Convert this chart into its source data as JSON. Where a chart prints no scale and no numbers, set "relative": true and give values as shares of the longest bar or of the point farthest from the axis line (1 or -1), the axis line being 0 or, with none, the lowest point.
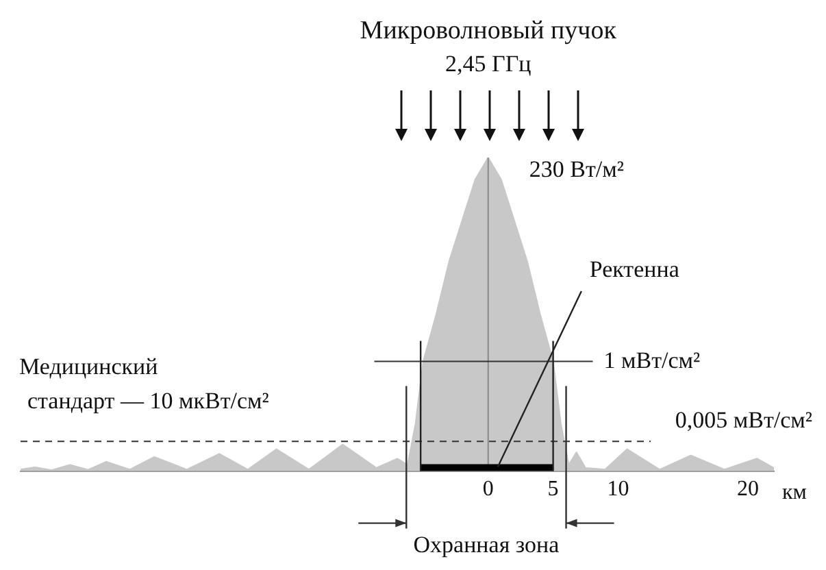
{
  "chart_data": {
    "type": "area",
    "title": "Микроволновый пучок",
    "subtitle": "2,45 ГГц",
    "xlabel": "км",
    "relative": true,
    "xlim": [
      -36,
      22
    ],
    "xticks": [
      0,
      5,
      10,
      20
    ],
    "series": [
      {
        "color": "#c8c8c8",
        "x": [
          -36,
          -34.9,
          -33.6,
          -32.2,
          -30.8,
          -29.4,
          -27.6,
          -25.7,
          -23.2,
          -20.7,
          -18.5,
          -16.3,
          -13.8,
          -11.2,
          -8.6,
          -7,
          -6.2,
          -5.6,
          -5,
          -4,
          -3,
          -2,
          -1,
          0,
          1,
          2,
          3,
          4,
          5,
          5.6,
          6.2,
          6.8,
          7.5,
          9,
          10.7,
          13.2,
          15.6,
          18.2,
          20.7,
          22
        ],
        "values": [
          0.005,
          0.012,
          0.003,
          0.02,
          0.004,
          0.03,
          0.005,
          0.045,
          0.005,
          0.055,
          0.005,
          0.07,
          0.005,
          0.085,
          0.01,
          0.04,
          0.02,
          0.15,
          0.35,
          0.5,
          0.67,
          0.8,
          0.93,
          1,
          0.93,
          0.8,
          0.67,
          0.5,
          0.35,
          0.15,
          0.02,
          0.06,
          0.01,
          0.005,
          0.07,
          0.005,
          0.05,
          0.005,
          0.04,
          0.01
        ]
      }
    ],
    "ref_lines": [
      {
        "axis": "x",
        "value": 0,
        "color": "#888888"
      },
      {
        "axis": "y",
        "value": 0.35,
        "label": "1 мВт/см²",
        "color": "#333333"
      },
      {
        "axis": "y",
        "value": 0.095,
        "label": "0,005 мВт/см²",
        "color": "#333333",
        "line_style": "dashed"
      }
    ],
    "annotations": [
      {
        "text": "230 Вт/м²",
        "x": 0,
        "y": 1
      },
      "Ректенна",
      "Медицинский стандарт — 10 мкВт/см²",
      "Охранная зона"
    ],
    "grid": false,
    "legend": false
  }
}
